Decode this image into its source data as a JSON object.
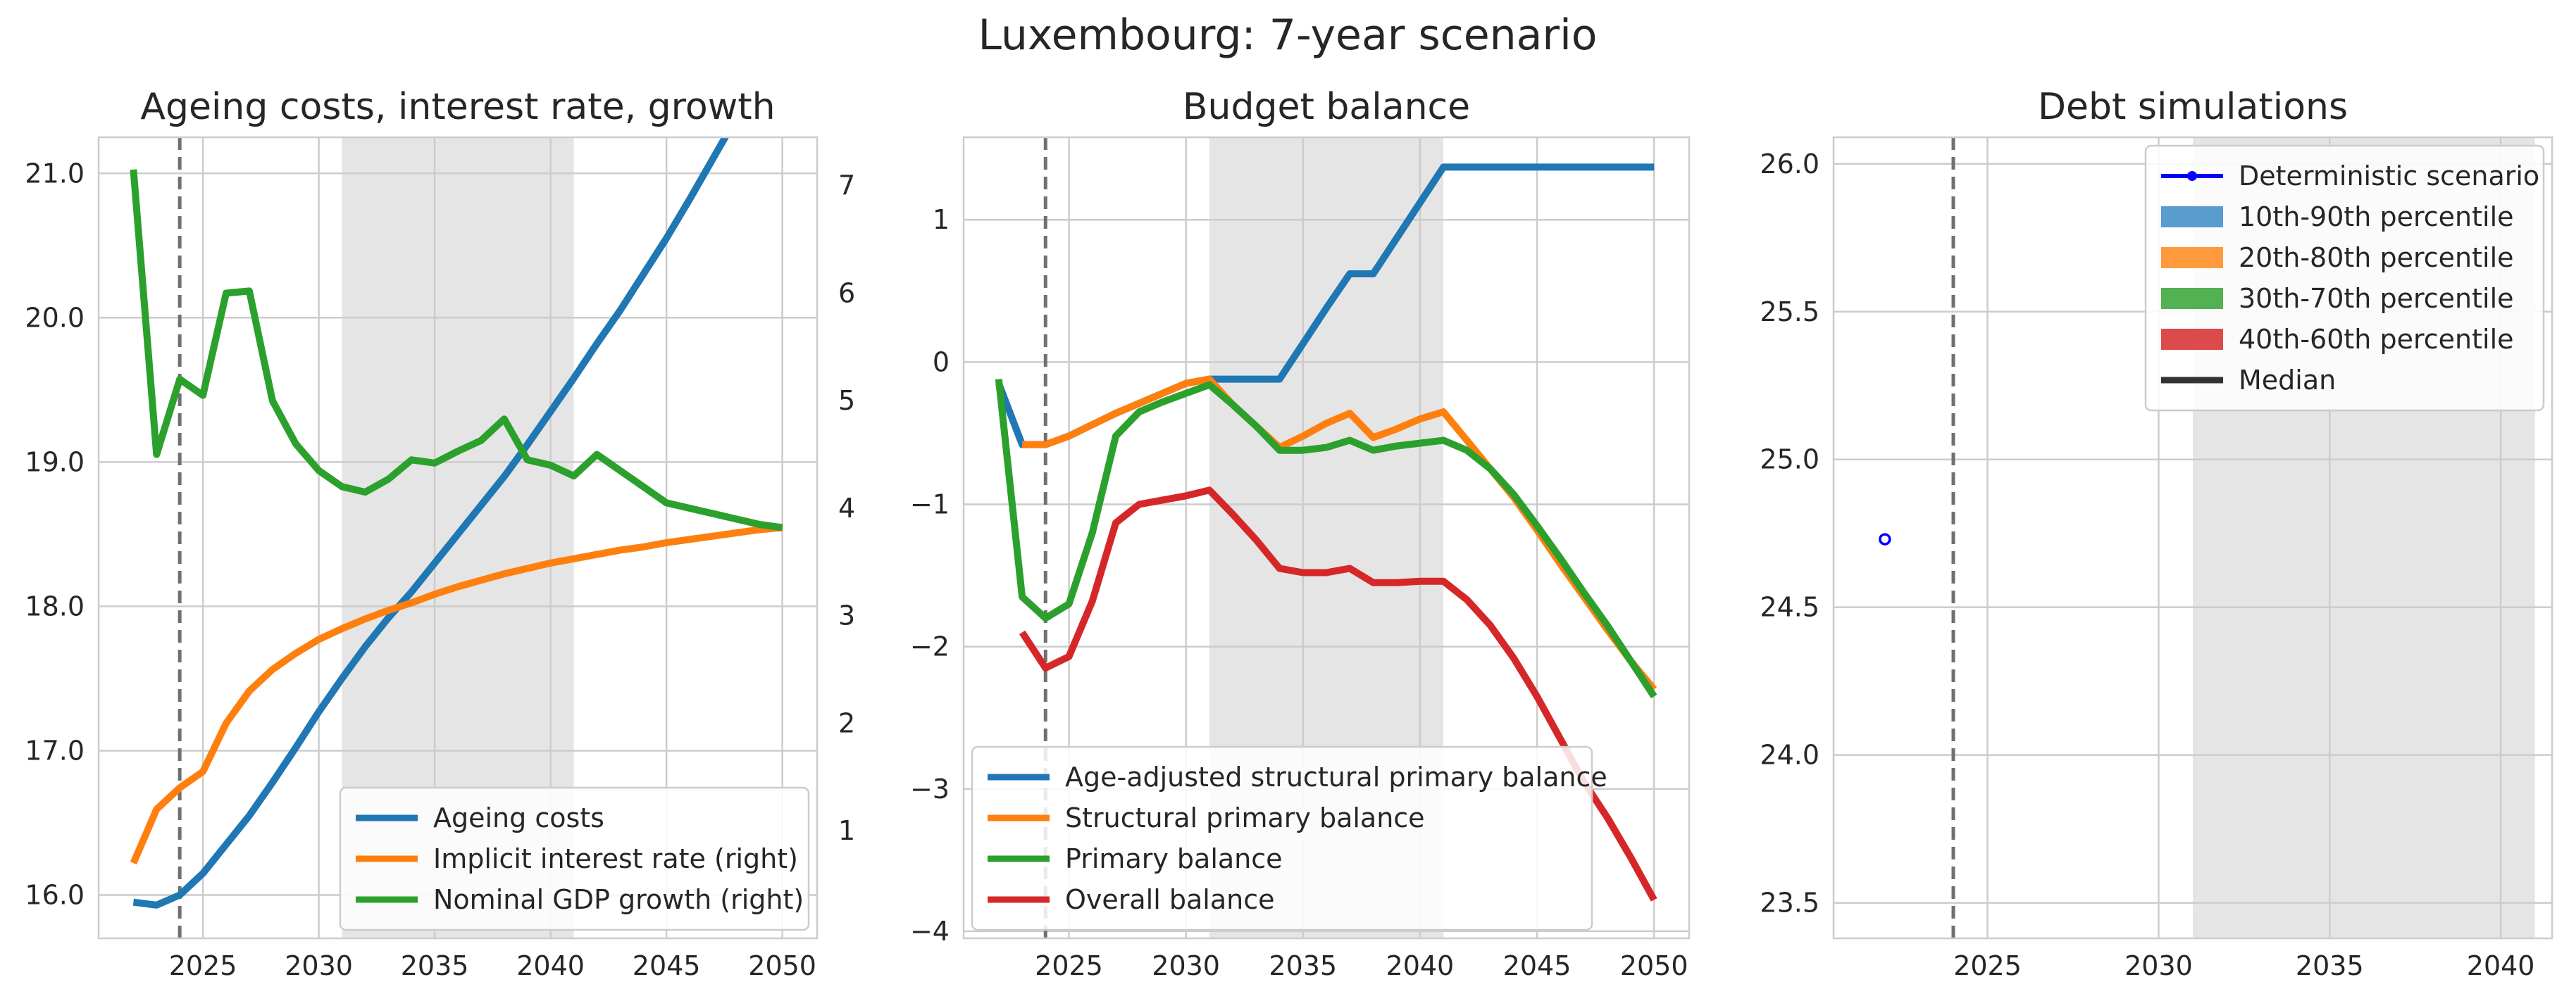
{
  "figure": {
    "title": "Luxembourg: 7-year scenario"
  },
  "chart_data": [
    {
      "type": "line",
      "title": "Ageing costs, interest rate, growth",
      "xlim": [
        2020.5,
        2051.5
      ],
      "ylim": [
        15.7,
        21.25
      ],
      "y2lim": [
        0.0,
        7.45
      ],
      "xticks": [
        2025,
        2030,
        2035,
        2040,
        2045,
        2050
      ],
      "yticks": [
        16.0,
        17.0,
        18.0,
        19.0,
        20.0,
        21.0
      ],
      "ytick_labels": [
        "16.0",
        "17.0",
        "18.0",
        "19.0",
        "20.0",
        "21.0"
      ],
      "y2ticks": [
        1,
        2,
        3,
        4,
        5,
        6,
        7
      ],
      "shaded_x": [
        2031,
        2041
      ],
      "vline_x": 2024,
      "grid": true,
      "legend": "lower-right",
      "x": [
        2022,
        2023,
        2024,
        2025,
        2026,
        2027,
        2028,
        2029,
        2030,
        2031,
        2032,
        2033,
        2034,
        2035,
        2036,
        2037,
        2038,
        2039,
        2040,
        2041,
        2042,
        2043,
        2044,
        2045,
        2046,
        2047,
        2048,
        2049,
        2050
      ],
      "series": [
        {
          "name": "Ageing costs",
          "axis": "left",
          "color": "#1f77b4",
          "values": [
            15.95,
            15.93,
            16.0,
            16.15,
            16.35,
            16.55,
            16.78,
            17.02,
            17.27,
            17.5,
            17.72,
            17.92,
            18.1,
            18.3,
            18.5,
            18.7,
            18.9,
            19.12,
            19.35,
            19.58,
            19.82,
            20.05,
            20.3,
            20.55,
            20.82,
            21.1,
            21.38,
            21.66,
            21.95
          ]
        },
        {
          "name": "Implicit interest rate (right)",
          "axis": "right",
          "color": "#ff7f0e",
          "values": [
            0.7,
            1.2,
            1.4,
            1.55,
            2.0,
            2.3,
            2.5,
            2.65,
            2.78,
            2.88,
            2.97,
            3.05,
            3.12,
            3.2,
            3.27,
            3.33,
            3.39,
            3.44,
            3.49,
            3.53,
            3.57,
            3.61,
            3.64,
            3.68,
            3.71,
            3.74,
            3.77,
            3.8,
            3.82
          ]
        },
        {
          "name": "Nominal GDP growth (right)",
          "axis": "right",
          "color": "#2ca02c",
          "values": [
            7.15,
            4.5,
            5.2,
            5.05,
            6.0,
            6.02,
            5.0,
            4.6,
            4.35,
            4.2,
            4.15,
            4.27,
            4.45,
            4.42,
            4.53,
            4.63,
            4.83,
            4.45,
            4.4,
            4.3,
            4.5,
            4.35,
            4.2,
            4.05,
            4.0,
            3.95,
            3.9,
            3.85,
            3.82
          ]
        }
      ]
    },
    {
      "type": "line",
      "title": "Budget balance",
      "xlim": [
        2020.5,
        2051.5
      ],
      "ylim": [
        -4.05,
        1.58
      ],
      "xticks": [
        2025,
        2030,
        2035,
        2040,
        2045,
        2050
      ],
      "yticks": [
        -4,
        -3,
        -2,
        -1,
        0,
        1
      ],
      "ytick_labels": [
        "−4",
        "−3",
        "−2",
        "−1",
        "0",
        "1"
      ],
      "shaded_x": [
        2031,
        2041
      ],
      "vline_x": 2024,
      "grid": true,
      "legend": "lower-left",
      "series": [
        {
          "name": "Age-adjusted structural primary balance",
          "color": "#1f77b4",
          "x": [
            2022,
            2023,
            2024,
            2025,
            2026,
            2027,
            2028,
            2029,
            2030,
            2031,
            2032,
            2033,
            2034,
            2035,
            2036,
            2037,
            2038,
            2039,
            2040,
            2041,
            2042,
            2043,
            2044,
            2045,
            2046,
            2047,
            2048,
            2049,
            2050
          ],
          "values": [
            -0.15,
            -0.58,
            -0.58,
            -0.52,
            -0.44,
            -0.36,
            -0.29,
            -0.22,
            -0.15,
            -0.12,
            -0.12,
            -0.12,
            -0.12,
            0.13,
            0.38,
            0.62,
            0.62,
            0.87,
            1.12,
            1.37,
            1.37,
            1.37,
            1.37,
            1.37,
            1.37,
            1.37,
            1.37,
            1.37,
            1.37
          ]
        },
        {
          "name": "Structural primary balance",
          "color": "#ff7f0e",
          "x": [
            2023,
            2024,
            2025,
            2026,
            2027,
            2028,
            2029,
            2030,
            2031,
            2032,
            2033,
            2034,
            2035,
            2036,
            2037,
            2038,
            2039,
            2040,
            2041,
            2042,
            2043,
            2044,
            2045,
            2046,
            2047,
            2048,
            2049,
            2050
          ],
          "values": [
            -0.58,
            -0.58,
            -0.52,
            -0.44,
            -0.36,
            -0.29,
            -0.22,
            -0.15,
            -0.12,
            -0.3,
            -0.45,
            -0.6,
            -0.52,
            -0.43,
            -0.36,
            -0.53,
            -0.47,
            -0.4,
            -0.35,
            -0.55,
            -0.75,
            -0.95,
            -1.18,
            -1.42,
            -1.65,
            -1.88,
            -2.1,
            -2.3
          ]
        },
        {
          "name": "Primary balance",
          "color": "#2ca02c",
          "x": [
            2022,
            2023,
            2024,
            2025,
            2026,
            2027,
            2028,
            2029,
            2030,
            2031,
            2032,
            2033,
            2034,
            2035,
            2036,
            2037,
            2038,
            2039,
            2040,
            2041,
            2042,
            2043,
            2044,
            2045,
            2046,
            2047,
            2048,
            2049,
            2050
          ],
          "values": [
            -0.12,
            -1.65,
            -1.8,
            -1.7,
            -1.2,
            -0.52,
            -0.35,
            -0.28,
            -0.22,
            -0.16,
            -0.3,
            -0.45,
            -0.62,
            -0.62,
            -0.6,
            -0.55,
            -0.62,
            -0.59,
            -0.57,
            -0.55,
            -0.62,
            -0.75,
            -0.93,
            -1.15,
            -1.38,
            -1.62,
            -1.85,
            -2.1,
            -2.35
          ]
        },
        {
          "name": "Overall balance",
          "color": "#d62728",
          "x": [
            2023,
            2024,
            2025,
            2026,
            2027,
            2028,
            2029,
            2030,
            2031,
            2032,
            2033,
            2034,
            2035,
            2036,
            2037,
            2038,
            2039,
            2040,
            2041,
            2042,
            2043,
            2044,
            2045,
            2046,
            2047,
            2048,
            2049,
            2050
          ],
          "values": [
            -1.9,
            -2.15,
            -2.07,
            -1.68,
            -1.13,
            -1.0,
            -0.97,
            -0.94,
            -0.9,
            -1.07,
            -1.25,
            -1.45,
            -1.48,
            -1.48,
            -1.45,
            -1.55,
            -1.55,
            -1.54,
            -1.54,
            -1.67,
            -1.85,
            -2.08,
            -2.35,
            -2.65,
            -2.95,
            -3.2,
            -3.48,
            -3.78
          ]
        }
      ]
    },
    {
      "type": "line",
      "title": "Debt simulations",
      "xlim": [
        2020.5,
        2041.5
      ],
      "ylim": [
        23.38,
        26.09
      ],
      "xticks": [
        2025,
        2030,
        2035,
        2040
      ],
      "yticks": [
        23.5,
        24.0,
        24.5,
        25.0,
        25.5,
        26.0
      ],
      "ytick_labels": [
        "23.5",
        "24.0",
        "24.5",
        "25.0",
        "25.5",
        "26.0"
      ],
      "shaded_x": [
        2031,
        2041
      ],
      "vline_x": 2024,
      "grid": true,
      "legend": "upper-right",
      "legend_entries": [
        {
          "name": "Deterministic scenario",
          "kind": "line-marker",
          "color": "#0000ff"
        },
        {
          "name": "10th-90th percentile",
          "kind": "patch",
          "color": "#5b9ccf"
        },
        {
          "name": "20th-80th percentile",
          "kind": "patch",
          "color": "#ff9a3c"
        },
        {
          "name": "30th-70th percentile",
          "kind": "patch",
          "color": "#53b153"
        },
        {
          "name": "40th-60th percentile",
          "kind": "patch",
          "color": "#dc4b4c"
        },
        {
          "name": "Median",
          "kind": "line",
          "color": "#333333"
        }
      ],
      "points": [
        {
          "series": "Deterministic scenario",
          "x": 2022,
          "y": 24.73,
          "color": "#0000ff"
        }
      ]
    }
  ]
}
